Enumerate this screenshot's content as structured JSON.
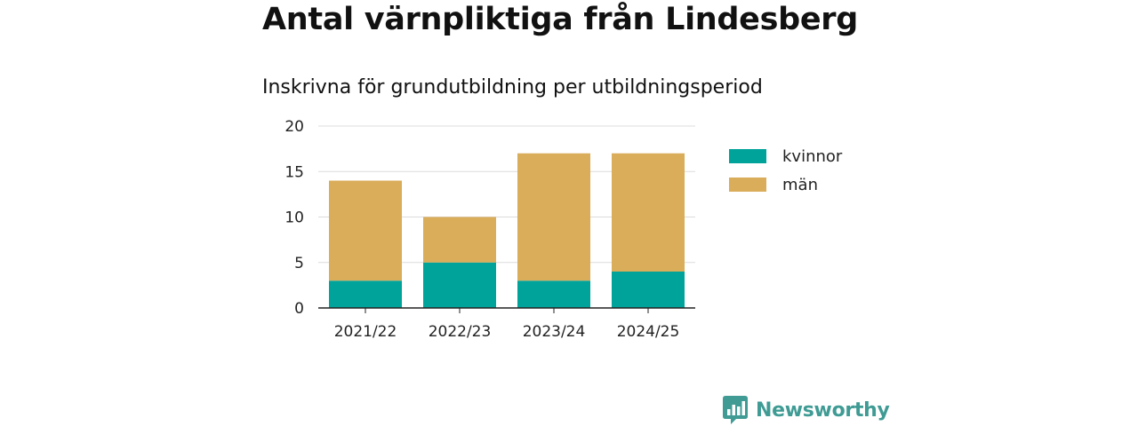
{
  "title": "Antal värnpliktiga från Lindesberg",
  "subtitle": "Inskrivna för grundutbildning per utbildningsperiod",
  "chart_data": {
    "type": "bar",
    "stacked": true,
    "title": "Antal värnpliktiga från Lindesberg",
    "subtitle": "Inskrivna för grundutbildning per utbildningsperiod",
    "categories": [
      "2021/22",
      "2022/23",
      "2023/24",
      "2024/25"
    ],
    "series": [
      {
        "name": "kvinnor",
        "values": [
          3,
          5,
          3,
          4
        ],
        "color": "#00a39a"
      },
      {
        "name": "män",
        "values": [
          11,
          5,
          14,
          13
        ],
        "color": "#d9ad5a"
      }
    ],
    "ylim": [
      0,
      20
    ],
    "yticks": [
      0,
      5,
      10,
      15,
      20
    ],
    "grid": true,
    "legend": "right"
  },
  "legend": [
    {
      "label": "kvinnor",
      "color": "#00a39a"
    },
    {
      "label": "män",
      "color": "#d9ad5a"
    }
  ],
  "brand": {
    "name": "Newsworthy",
    "icon": "newsworthy-chart-icon",
    "color": "#3f9b94"
  }
}
